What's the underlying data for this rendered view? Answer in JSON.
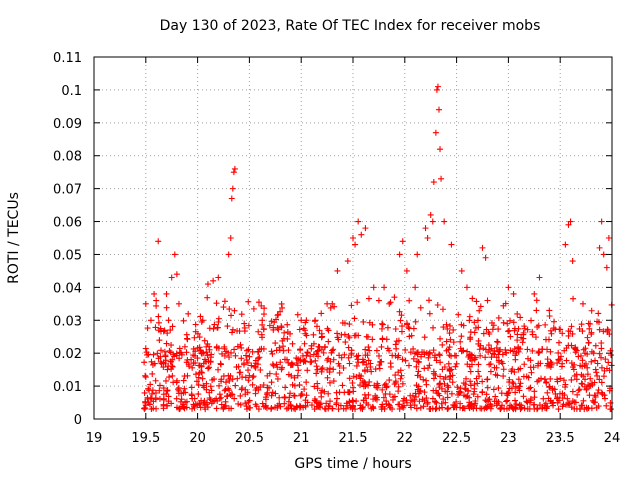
{
  "chart_data": {
    "type": "scatter",
    "title": "Day 130 of 2023, Rate Of TEC Index for receiver mobs",
    "xlabel": "GPS time / hours",
    "ylabel": "ROTI / TECUs",
    "xlim": [
      19,
      24
    ],
    "ylim": [
      0,
      0.11
    ],
    "xticks": [
      19,
      19.5,
      20,
      20.5,
      21,
      21.5,
      22,
      22.5,
      23,
      23.5,
      24
    ],
    "xtick_labels": [
      "19",
      "19.5",
      "20",
      "20.5",
      "21",
      "21.5",
      "22",
      "22.5",
      "23",
      "23.5",
      "24"
    ],
    "yticks": [
      0,
      0.01,
      0.02,
      0.03,
      0.04,
      0.05,
      0.06,
      0.07,
      0.08,
      0.09,
      0.1,
      0.11
    ],
    "ytick_labels": [
      "0",
      "0.01",
      "0.02",
      "0.03",
      "0.04",
      "0.05",
      "0.06",
      "0.07",
      "0.08",
      "0.09",
      "0.1",
      "0.11"
    ],
    "grid": true,
    "marker": "+",
    "color": "#ff0000",
    "series": [
      {
        "name": "mobs",
        "x_start": 19.48,
        "x_end": 24.0,
        "dense_band": [
          0.003,
          0.022
        ],
        "points": [
          [
            19.5,
            0.035
          ],
          [
            19.55,
            0.03
          ],
          [
            19.58,
            0.038
          ],
          [
            19.6,
            0.036
          ],
          [
            19.62,
            0.054
          ],
          [
            19.7,
            0.038
          ],
          [
            19.72,
            0.03
          ],
          [
            19.75,
            0.043
          ],
          [
            19.78,
            0.05
          ],
          [
            19.8,
            0.044
          ],
          [
            19.82,
            0.035
          ],
          [
            20.05,
            0.03
          ],
          [
            20.1,
            0.041
          ],
          [
            20.15,
            0.042
          ],
          [
            20.2,
            0.043
          ],
          [
            20.25,
            0.034
          ],
          [
            20.3,
            0.05
          ],
          [
            20.32,
            0.055
          ],
          [
            20.33,
            0.067
          ],
          [
            20.34,
            0.07
          ],
          [
            20.35,
            0.075
          ],
          [
            20.36,
            0.076
          ],
          [
            20.45,
            0.029
          ],
          [
            21.0,
            0.03
          ],
          [
            21.05,
            0.03
          ],
          [
            21.25,
            0.035
          ],
          [
            21.3,
            0.035
          ],
          [
            21.35,
            0.045
          ],
          [
            21.45,
            0.048
          ],
          [
            21.5,
            0.055
          ],
          [
            21.52,
            0.053
          ],
          [
            21.55,
            0.06
          ],
          [
            21.58,
            0.056
          ],
          [
            21.62,
            0.058
          ],
          [
            21.7,
            0.04
          ],
          [
            21.75,
            0.036
          ],
          [
            21.8,
            0.04
          ],
          [
            21.85,
            0.035
          ],
          [
            21.9,
            0.037
          ],
          [
            21.95,
            0.05
          ],
          [
            21.98,
            0.054
          ],
          [
            22.02,
            0.045
          ],
          [
            22.1,
            0.04
          ],
          [
            22.12,
            0.05
          ],
          [
            22.2,
            0.058
          ],
          [
            22.22,
            0.055
          ],
          [
            22.25,
            0.062
          ],
          [
            22.27,
            0.06
          ],
          [
            22.28,
            0.072
          ],
          [
            22.3,
            0.087
          ],
          [
            22.31,
            0.1
          ],
          [
            22.32,
            0.101
          ],
          [
            22.33,
            0.094
          ],
          [
            22.34,
            0.082
          ],
          [
            22.35,
            0.073
          ],
          [
            22.38,
            0.06
          ],
          [
            22.45,
            0.053
          ],
          [
            22.55,
            0.045
          ],
          [
            22.6,
            0.04
          ],
          [
            22.75,
            0.052
          ],
          [
            22.78,
            0.049
          ],
          [
            23.0,
            0.04
          ],
          [
            23.05,
            0.038
          ],
          [
            23.25,
            0.038
          ],
          [
            23.27,
            0.033
          ],
          [
            23.3,
            0.043
          ],
          [
            23.55,
            0.053
          ],
          [
            23.58,
            0.059
          ],
          [
            23.6,
            0.06
          ],
          [
            23.62,
            0.048
          ],
          [
            23.72,
            0.035
          ],
          [
            23.88,
            0.052
          ],
          [
            23.9,
            0.06
          ],
          [
            23.92,
            0.05
          ],
          [
            23.95,
            0.046
          ],
          [
            23.97,
            0.055
          ]
        ]
      }
    ]
  }
}
